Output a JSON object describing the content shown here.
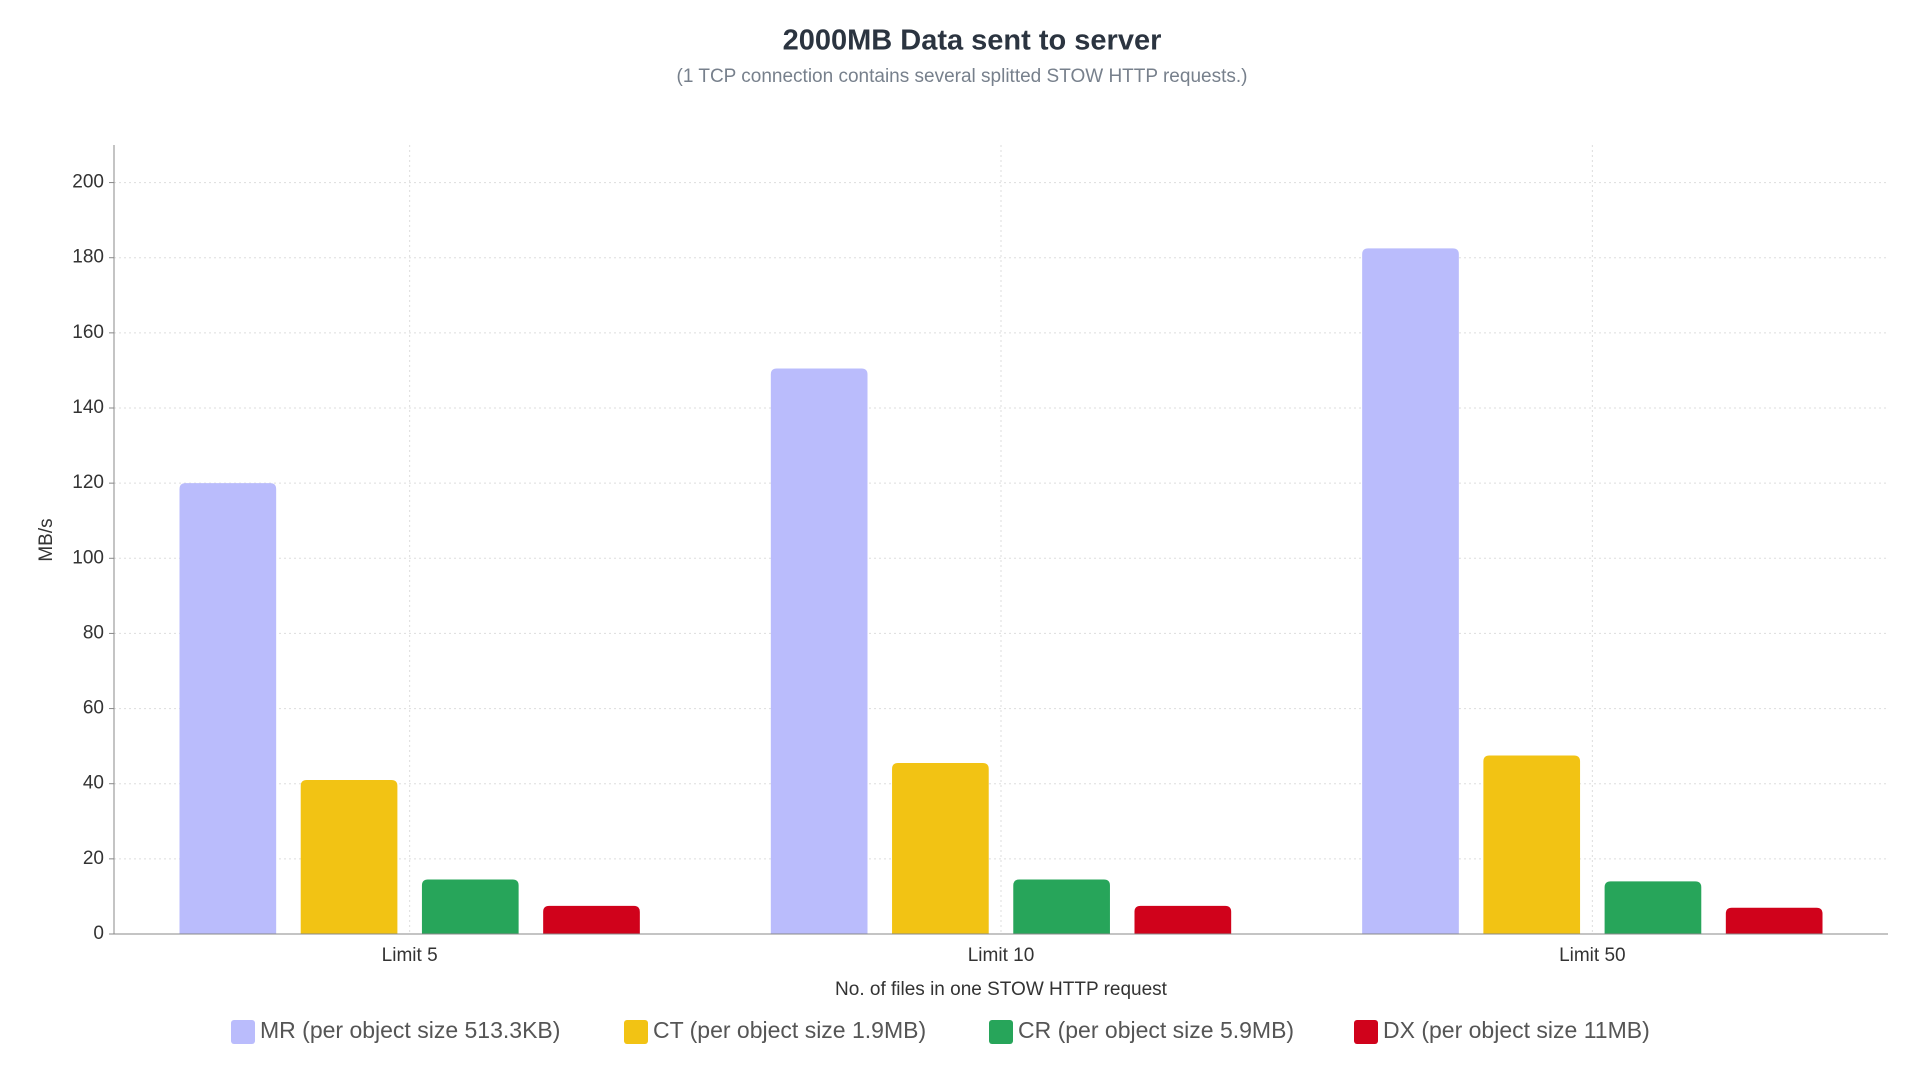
{
  "chart_data": {
    "type": "bar",
    "title": "2000MB Data sent to server",
    "subtitle": "(1 TCP connection contains several splitted STOW HTTP requests.)",
    "x_label": "No. of files in one STOW HTTP request",
    "y_label": "MB/s",
    "categories": [
      "Limit 5",
      "Limit 10",
      "Limit 50"
    ],
    "series": [
      {
        "name": "MR (per object size 513.3KB)",
        "color": "#babcfc",
        "values": [
          120,
          150.5,
          182.5
        ]
      },
      {
        "name": "CT (per object size 1.9MB)",
        "color": "#f2c314",
        "values": [
          41,
          45.5,
          47.5
        ]
      },
      {
        "name": "CR (per object size 5.9MB)",
        "color": "#27a55a",
        "values": [
          14.5,
          14.5,
          14
        ]
      },
      {
        "name": "DX (per object size 11MB)",
        "color": "#d0021b",
        "values": [
          7.5,
          7.5,
          7
        ]
      }
    ],
    "ylim": [
      0,
      210
    ],
    "yticks": [
      0,
      20,
      40,
      60,
      80,
      100,
      120,
      140,
      160,
      180,
      200
    ],
    "grid": true,
    "legend": "bottom"
  }
}
